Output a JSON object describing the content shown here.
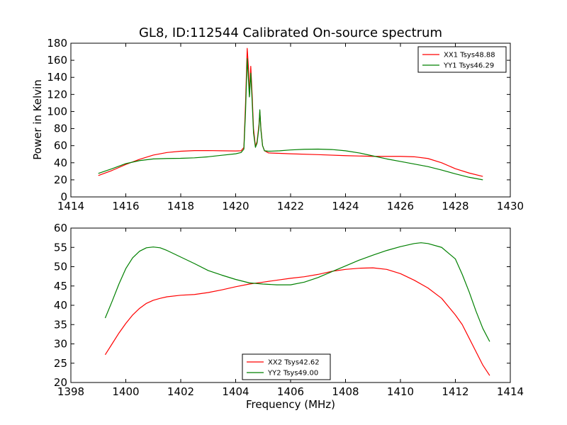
{
  "chart_data": [
    {
      "type": "line",
      "title": "GL8, ID:112544 Calibrated On-source spectrum",
      "xlabel": "",
      "ylabel": "Power in Kelvin",
      "xlim": [
        1414,
        1430
      ],
      "ylim": [
        0,
        180
      ],
      "xticks": [
        "1414",
        "1416",
        "1418",
        "1420",
        "1422",
        "1424",
        "1426",
        "1428",
        "1430"
      ],
      "yticks": [
        "0",
        "20",
        "40",
        "60",
        "80",
        "100",
        "120",
        "140",
        "160",
        "180"
      ],
      "grid": false,
      "legend_position": "top-right",
      "series": [
        {
          "name": "XX1 Tsys48.88",
          "color": "#ff0000",
          "points": [
            [
              1415.0,
              25
            ],
            [
              1415.5,
              31
            ],
            [
              1416.0,
              38
            ],
            [
              1416.5,
              44
            ],
            [
              1417.0,
              49
            ],
            [
              1417.5,
              52
            ],
            [
              1418.0,
              53.5
            ],
            [
              1418.5,
              54.2
            ],
            [
              1419.0,
              54.3
            ],
            [
              1419.5,
              54
            ],
            [
              1420.0,
              53.8
            ],
            [
              1420.2,
              54
            ],
            [
              1420.3,
              58
            ],
            [
              1420.36,
              110
            ],
            [
              1420.42,
              174
            ],
            [
              1420.47,
              150
            ],
            [
              1420.5,
              118
            ],
            [
              1420.55,
              153
            ],
            [
              1420.6,
              120
            ],
            [
              1420.65,
              80
            ],
            [
              1420.72,
              59
            ],
            [
              1420.78,
              65
            ],
            [
              1420.85,
              85
            ],
            [
              1420.88,
              100
            ],
            [
              1420.92,
              80
            ],
            [
              1420.98,
              60
            ],
            [
              1421.05,
              54
            ],
            [
              1421.2,
              51.5
            ],
            [
              1421.6,
              51
            ],
            [
              1422,
              50.5
            ],
            [
              1423,
              49.5
            ],
            [
              1424,
              48.3
            ],
            [
              1425,
              47.5
            ],
            [
              1426,
              47.5
            ],
            [
              1426.5,
              47
            ],
            [
              1427,
              45
            ],
            [
              1427.5,
              40
            ],
            [
              1428,
              33
            ],
            [
              1428.5,
              28
            ],
            [
              1429,
              24
            ]
          ]
        },
        {
          "name": "YY1 Tsys46.29",
          "color": "#008000",
          "points": [
            [
              1415.0,
              27.5
            ],
            [
              1415.5,
              33
            ],
            [
              1416.0,
              39
            ],
            [
              1416.5,
              42.5
            ],
            [
              1417.0,
              44.5
            ],
            [
              1417.5,
              45
            ],
            [
              1418.0,
              45.2
            ],
            [
              1418.5,
              45.8
            ],
            [
              1419.0,
              47
            ],
            [
              1419.5,
              48.8
            ],
            [
              1420.0,
              50.5
            ],
            [
              1420.2,
              52
            ],
            [
              1420.3,
              56
            ],
            [
              1420.36,
              100
            ],
            [
              1420.42,
              162
            ],
            [
              1420.47,
              135
            ],
            [
              1420.5,
              117
            ],
            [
              1420.55,
              145
            ],
            [
              1420.6,
              112
            ],
            [
              1420.65,
              75
            ],
            [
              1420.72,
              58
            ],
            [
              1420.78,
              63
            ],
            [
              1420.85,
              82
            ],
            [
              1420.88,
              102
            ],
            [
              1420.92,
              78
            ],
            [
              1420.98,
              60
            ],
            [
              1421.05,
              54
            ],
            [
              1421.2,
              53.5
            ],
            [
              1421.6,
              54
            ],
            [
              1422,
              55
            ],
            [
              1422.5,
              55.8
            ],
            [
              1423,
              56
            ],
            [
              1423.5,
              55.5
            ],
            [
              1424,
              54
            ],
            [
              1424.5,
              51.5
            ],
            [
              1425,
              48
            ],
            [
              1425.5,
              44.5
            ],
            [
              1426,
              41.5
            ],
            [
              1426.5,
              38.5
            ],
            [
              1427,
              35.5
            ],
            [
              1427.5,
              31.5
            ],
            [
              1428,
              27
            ],
            [
              1428.5,
              23
            ],
            [
              1429,
              20
            ]
          ]
        }
      ]
    },
    {
      "type": "line",
      "title": "",
      "xlabel": "Frequency (MHz)",
      "ylabel": "",
      "xlim": [
        1398,
        1414
      ],
      "ylim": [
        20,
        60
      ],
      "xticks": [
        "1398",
        "1400",
        "1402",
        "1404",
        "1406",
        "1408",
        "1410",
        "1412",
        "1414"
      ],
      "yticks": [
        "20",
        "25",
        "30",
        "35",
        "40",
        "45",
        "50",
        "55",
        "60"
      ],
      "grid": false,
      "legend_position": "bottom-center",
      "series": [
        {
          "name": "XX2 Tsys42.62",
          "color": "#ff0000",
          "points": [
            [
              1399.25,
              27.2
            ],
            [
              1399.5,
              30
            ],
            [
              1399.75,
              32.8
            ],
            [
              1400.0,
              35.3
            ],
            [
              1400.25,
              37.5
            ],
            [
              1400.5,
              39.2
            ],
            [
              1400.75,
              40.5
            ],
            [
              1401.0,
              41.3
            ],
            [
              1401.25,
              41.8
            ],
            [
              1401.5,
              42.2
            ],
            [
              1402.0,
              42.6
            ],
            [
              1402.5,
              42.8
            ],
            [
              1403.0,
              43.3
            ],
            [
              1403.5,
              44
            ],
            [
              1404.0,
              44.8
            ],
            [
              1404.5,
              45.5
            ],
            [
              1405.0,
              46
            ],
            [
              1405.5,
              46.5
            ],
            [
              1406.0,
              47
            ],
            [
              1406.5,
              47.4
            ],
            [
              1407.0,
              48
            ],
            [
              1407.5,
              48.8
            ],
            [
              1408.0,
              49.3
            ],
            [
              1408.5,
              49.6
            ],
            [
              1409.0,
              49.7
            ],
            [
              1409.5,
              49.3
            ],
            [
              1410.0,
              48.2
            ],
            [
              1410.5,
              46.5
            ],
            [
              1411.0,
              44.5
            ],
            [
              1411.5,
              41.8
            ],
            [
              1412.0,
              37.5
            ],
            [
              1412.25,
              35
            ],
            [
              1412.5,
              31.5
            ],
            [
              1412.75,
              28
            ],
            [
              1413.0,
              24.5
            ],
            [
              1413.25,
              21.8
            ]
          ]
        },
        {
          "name": "YY2 Tsys49.00",
          "color": "#008000",
          "points": [
            [
              1399.25,
              36.7
            ],
            [
              1399.5,
              41
            ],
            [
              1399.75,
              45.5
            ],
            [
              1400.0,
              49.5
            ],
            [
              1400.25,
              52.3
            ],
            [
              1400.5,
              54
            ],
            [
              1400.75,
              54.9
            ],
            [
              1401.0,
              55.1
            ],
            [
              1401.25,
              54.9
            ],
            [
              1401.5,
              54.2
            ],
            [
              1402.0,
              52.5
            ],
            [
              1402.5,
              50.8
            ],
            [
              1403.0,
              49
            ],
            [
              1403.5,
              47.8
            ],
            [
              1404.0,
              46.7
            ],
            [
              1404.5,
              45.8
            ],
            [
              1405.0,
              45.5
            ],
            [
              1405.5,
              45.3
            ],
            [
              1406.0,
              45.3
            ],
            [
              1406.5,
              46
            ],
            [
              1407.0,
              47.2
            ],
            [
              1407.5,
              48.7
            ],
            [
              1408.0,
              50.2
            ],
            [
              1408.5,
              51.7
            ],
            [
              1409.0,
              53
            ],
            [
              1409.5,
              54.2
            ],
            [
              1410.0,
              55.2
            ],
            [
              1410.5,
              56
            ],
            [
              1410.75,
              56.2
            ],
            [
              1411.0,
              56
            ],
            [
              1411.5,
              55
            ],
            [
              1412.0,
              52
            ],
            [
              1412.25,
              48
            ],
            [
              1412.5,
              43.5
            ],
            [
              1412.75,
              38.5
            ],
            [
              1413.0,
              34
            ],
            [
              1413.25,
              30.6
            ]
          ]
        }
      ]
    }
  ]
}
